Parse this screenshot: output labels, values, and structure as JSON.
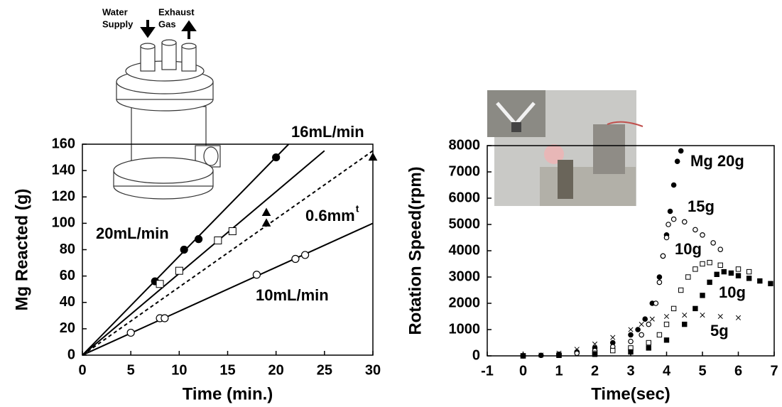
{
  "diagram": {
    "water_supply": [
      "Water",
      "Supply"
    ],
    "exhaust_gas": [
      "Exhaust",
      "Gas"
    ]
  },
  "chart_data": [
    {
      "type": "scatter",
      "x_label": "Time (min.)",
      "y_label": "Mg Reacted (g)",
      "xlim": [
        0,
        30
      ],
      "xticks": [
        0,
        5,
        10,
        15,
        20,
        25,
        30
      ],
      "ylim": [
        0,
        160
      ],
      "yticks": [
        0,
        20,
        40,
        60,
        80,
        100,
        120,
        140,
        160
      ],
      "series": [
        {
          "name": "20mL/min",
          "style": "line",
          "color": "#000",
          "x": [
            0,
            21.3
          ],
          "values": [
            0,
            160
          ]
        },
        {
          "name": "16mL/min",
          "style": "line",
          "color": "#000",
          "x": [
            0,
            25
          ],
          "values": [
            0,
            155
          ]
        },
        {
          "name": "0.6mm",
          "name_sup": "t",
          "style": "dashed",
          "color": "#000",
          "x": [
            0,
            30
          ],
          "values": [
            0,
            155
          ]
        },
        {
          "name": "10mL/min",
          "style": "line",
          "color": "#000",
          "x": [
            0,
            30
          ],
          "values": [
            0,
            100
          ]
        },
        {
          "marker": "circle",
          "fill": "#000",
          "color": "#000",
          "x": [
            7.5,
            10.5,
            12,
            20
          ],
          "values": [
            56,
            80,
            88,
            150
          ]
        },
        {
          "marker": "square",
          "fill": "#fff",
          "color": "#000",
          "x": [
            8,
            10,
            14,
            15.5
          ],
          "values": [
            54,
            64,
            87,
            94
          ]
        },
        {
          "marker": "triangle",
          "fill": "#000",
          "color": "#000",
          "x": [
            19,
            19,
            30
          ],
          "values": [
            108,
            100,
            150
          ]
        },
        {
          "marker": "circle",
          "fill": "#fff",
          "color": "#000",
          "x": [
            5,
            8,
            8.5,
            18,
            22,
            23
          ],
          "values": [
            17,
            28,
            28,
            61,
            73,
            76
          ]
        }
      ]
    },
    {
      "type": "scatter",
      "x_label": "Time(sec)",
      "y_label": "Rotation Speed(rpm)",
      "xlim": [
        -1,
        7
      ],
      "xticks": [
        -1,
        0,
        1,
        2,
        3,
        4,
        5,
        6,
        7
      ],
      "ylim": [
        0,
        8000
      ],
      "yticks": [
        0,
        1000,
        2000,
        3000,
        4000,
        5000,
        6000,
        7000,
        8000
      ],
      "series": [
        {
          "name": "Mg 20g",
          "marker": "circle",
          "fill": "#000",
          "color": "#000",
          "x": [
            0,
            0.5,
            1,
            1.5,
            2,
            2.5,
            3,
            3.2,
            3.4,
            3.6,
            3.8,
            3.9,
            4,
            4.1,
            4.2,
            4.3,
            4.4
          ],
          "values": [
            0,
            20,
            60,
            150,
            300,
            500,
            800,
            1000,
            1400,
            2000,
            3000,
            3800,
            4600,
            5500,
            6500,
            7400,
            7800
          ]
        },
        {
          "name": "15g",
          "marker": "circle",
          "fill": "#fff",
          "color": "#000",
          "x": [
            0,
            1,
            1.5,
            2,
            2.5,
            3,
            3.3,
            3.5,
            3.7,
            3.8,
            3.9,
            4,
            4.05,
            4.2,
            4.5,
            4.8,
            5,
            5.3,
            5.5
          ],
          "values": [
            0,
            40,
            100,
            200,
            350,
            550,
            800,
            1200,
            2000,
            2800,
            3800,
            4500,
            5000,
            5200,
            5100,
            4800,
            4600,
            4300,
            4050
          ]
        },
        {
          "name": "10g",
          "marker": "square",
          "fill": "#fff",
          "color": "#000",
          "x": [
            0,
            1,
            2,
            2.5,
            3,
            3.5,
            3.8,
            4,
            4.2,
            4.4,
            4.6,
            4.8,
            5,
            5.2,
            5.5,
            6,
            6.3
          ],
          "values": [
            0,
            30,
            100,
            200,
            300,
            500,
            800,
            1200,
            1800,
            2500,
            3000,
            3300,
            3500,
            3550,
            3450,
            3300,
            3200
          ]
        },
        {
          "name": "10g",
          "marker": "square",
          "fill": "#000",
          "color": "#000",
          "x": [
            0,
            1,
            2,
            3,
            3.5,
            4,
            4.5,
            4.8,
            5,
            5.2,
            5.4,
            5.6,
            5.8,
            6,
            6.3,
            6.6,
            6.9
          ],
          "values": [
            0,
            20,
            60,
            150,
            300,
            600,
            1200,
            1800,
            2300,
            2800,
            3100,
            3200,
            3150,
            3050,
            2950,
            2850,
            2750
          ]
        },
        {
          "name": "5g",
          "marker": "cross",
          "fill": "none",
          "color": "#000",
          "x": [
            0,
            0.5,
            1,
            1.5,
            2,
            2.5,
            3,
            3.3,
            3.6,
            4,
            4.5,
            5,
            5.5,
            6
          ],
          "values": [
            0,
            30,
            100,
            250,
            450,
            700,
            1000,
            1200,
            1400,
            1500,
            1550,
            1550,
            1500,
            1450
          ]
        }
      ]
    }
  ]
}
